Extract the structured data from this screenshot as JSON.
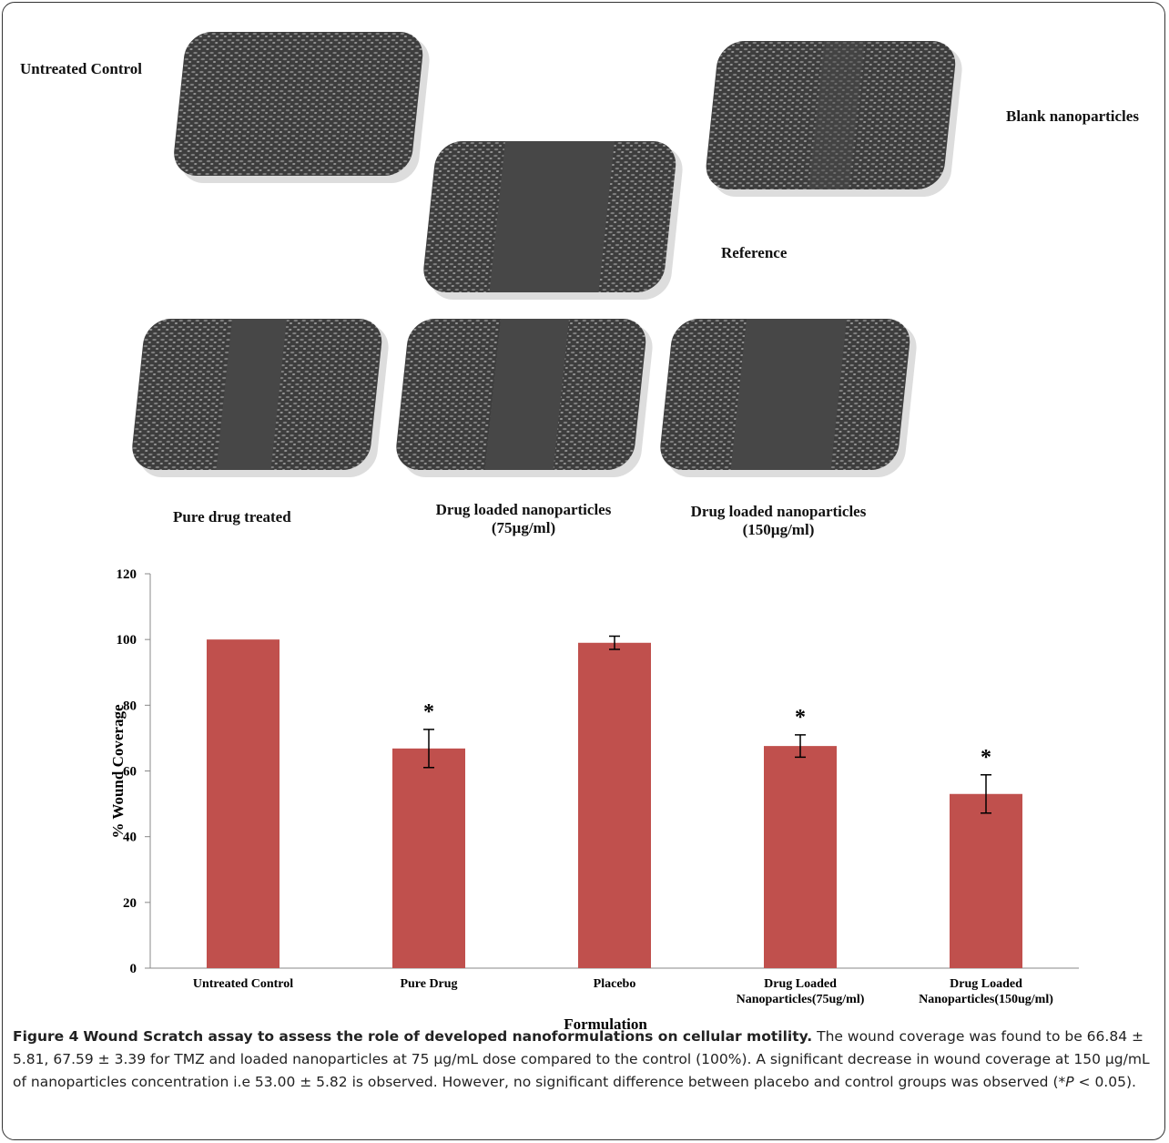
{
  "panels": {
    "untreated": "Untreated Control",
    "blank": "Blank nanoparticles",
    "reference": "Reference",
    "pure": "Pure drug treated",
    "np75": "Drug loaded nanoparticles\n(75µg/ml)",
    "np150": "Drug loaded nanoparticles\n(150µg/ml)"
  },
  "chart_data": {
    "type": "bar",
    "x_label": "Formulation",
    "y_label": "% Wound Coverage",
    "categories": [
      "Untreated Control",
      "Pure Drug",
      "Placebo",
      "Drug Loaded\nNanoparticles(75ug/ml)",
      "Drug Loaded\nNanoparticles(150ug/ml)"
    ],
    "values": [
      100,
      66.84,
      99,
      67.59,
      53.0
    ],
    "errors": [
      null,
      5.81,
      2,
      3.39,
      5.82
    ],
    "significance": [
      null,
      "*",
      null,
      "*",
      "*"
    ],
    "color": "#c0504d",
    "ylim": [
      0,
      120
    ],
    "yticks": [
      0,
      20,
      40,
      60,
      80,
      100,
      120
    ]
  },
  "caption": {
    "label": "Figure 4",
    "title": "Wound Scratch assay to assess the role of developed nanoformulations on cellular motility.",
    "body": [
      "The wound coverage was found to be 66.84 ± 5.81, 67.59 ± 3.39 for TMZ and loaded nanoparticles at 75 µg/mL dose compared to the control (100%). A significant decrease in wound coverage at 150 µg/mL of nanoparticles concentration i.e 53.00 ± 5.82 is observed. However, no significant difference between placebo and control groups was observed (*",
      "P",
      " < 0.05)."
    ]
  }
}
